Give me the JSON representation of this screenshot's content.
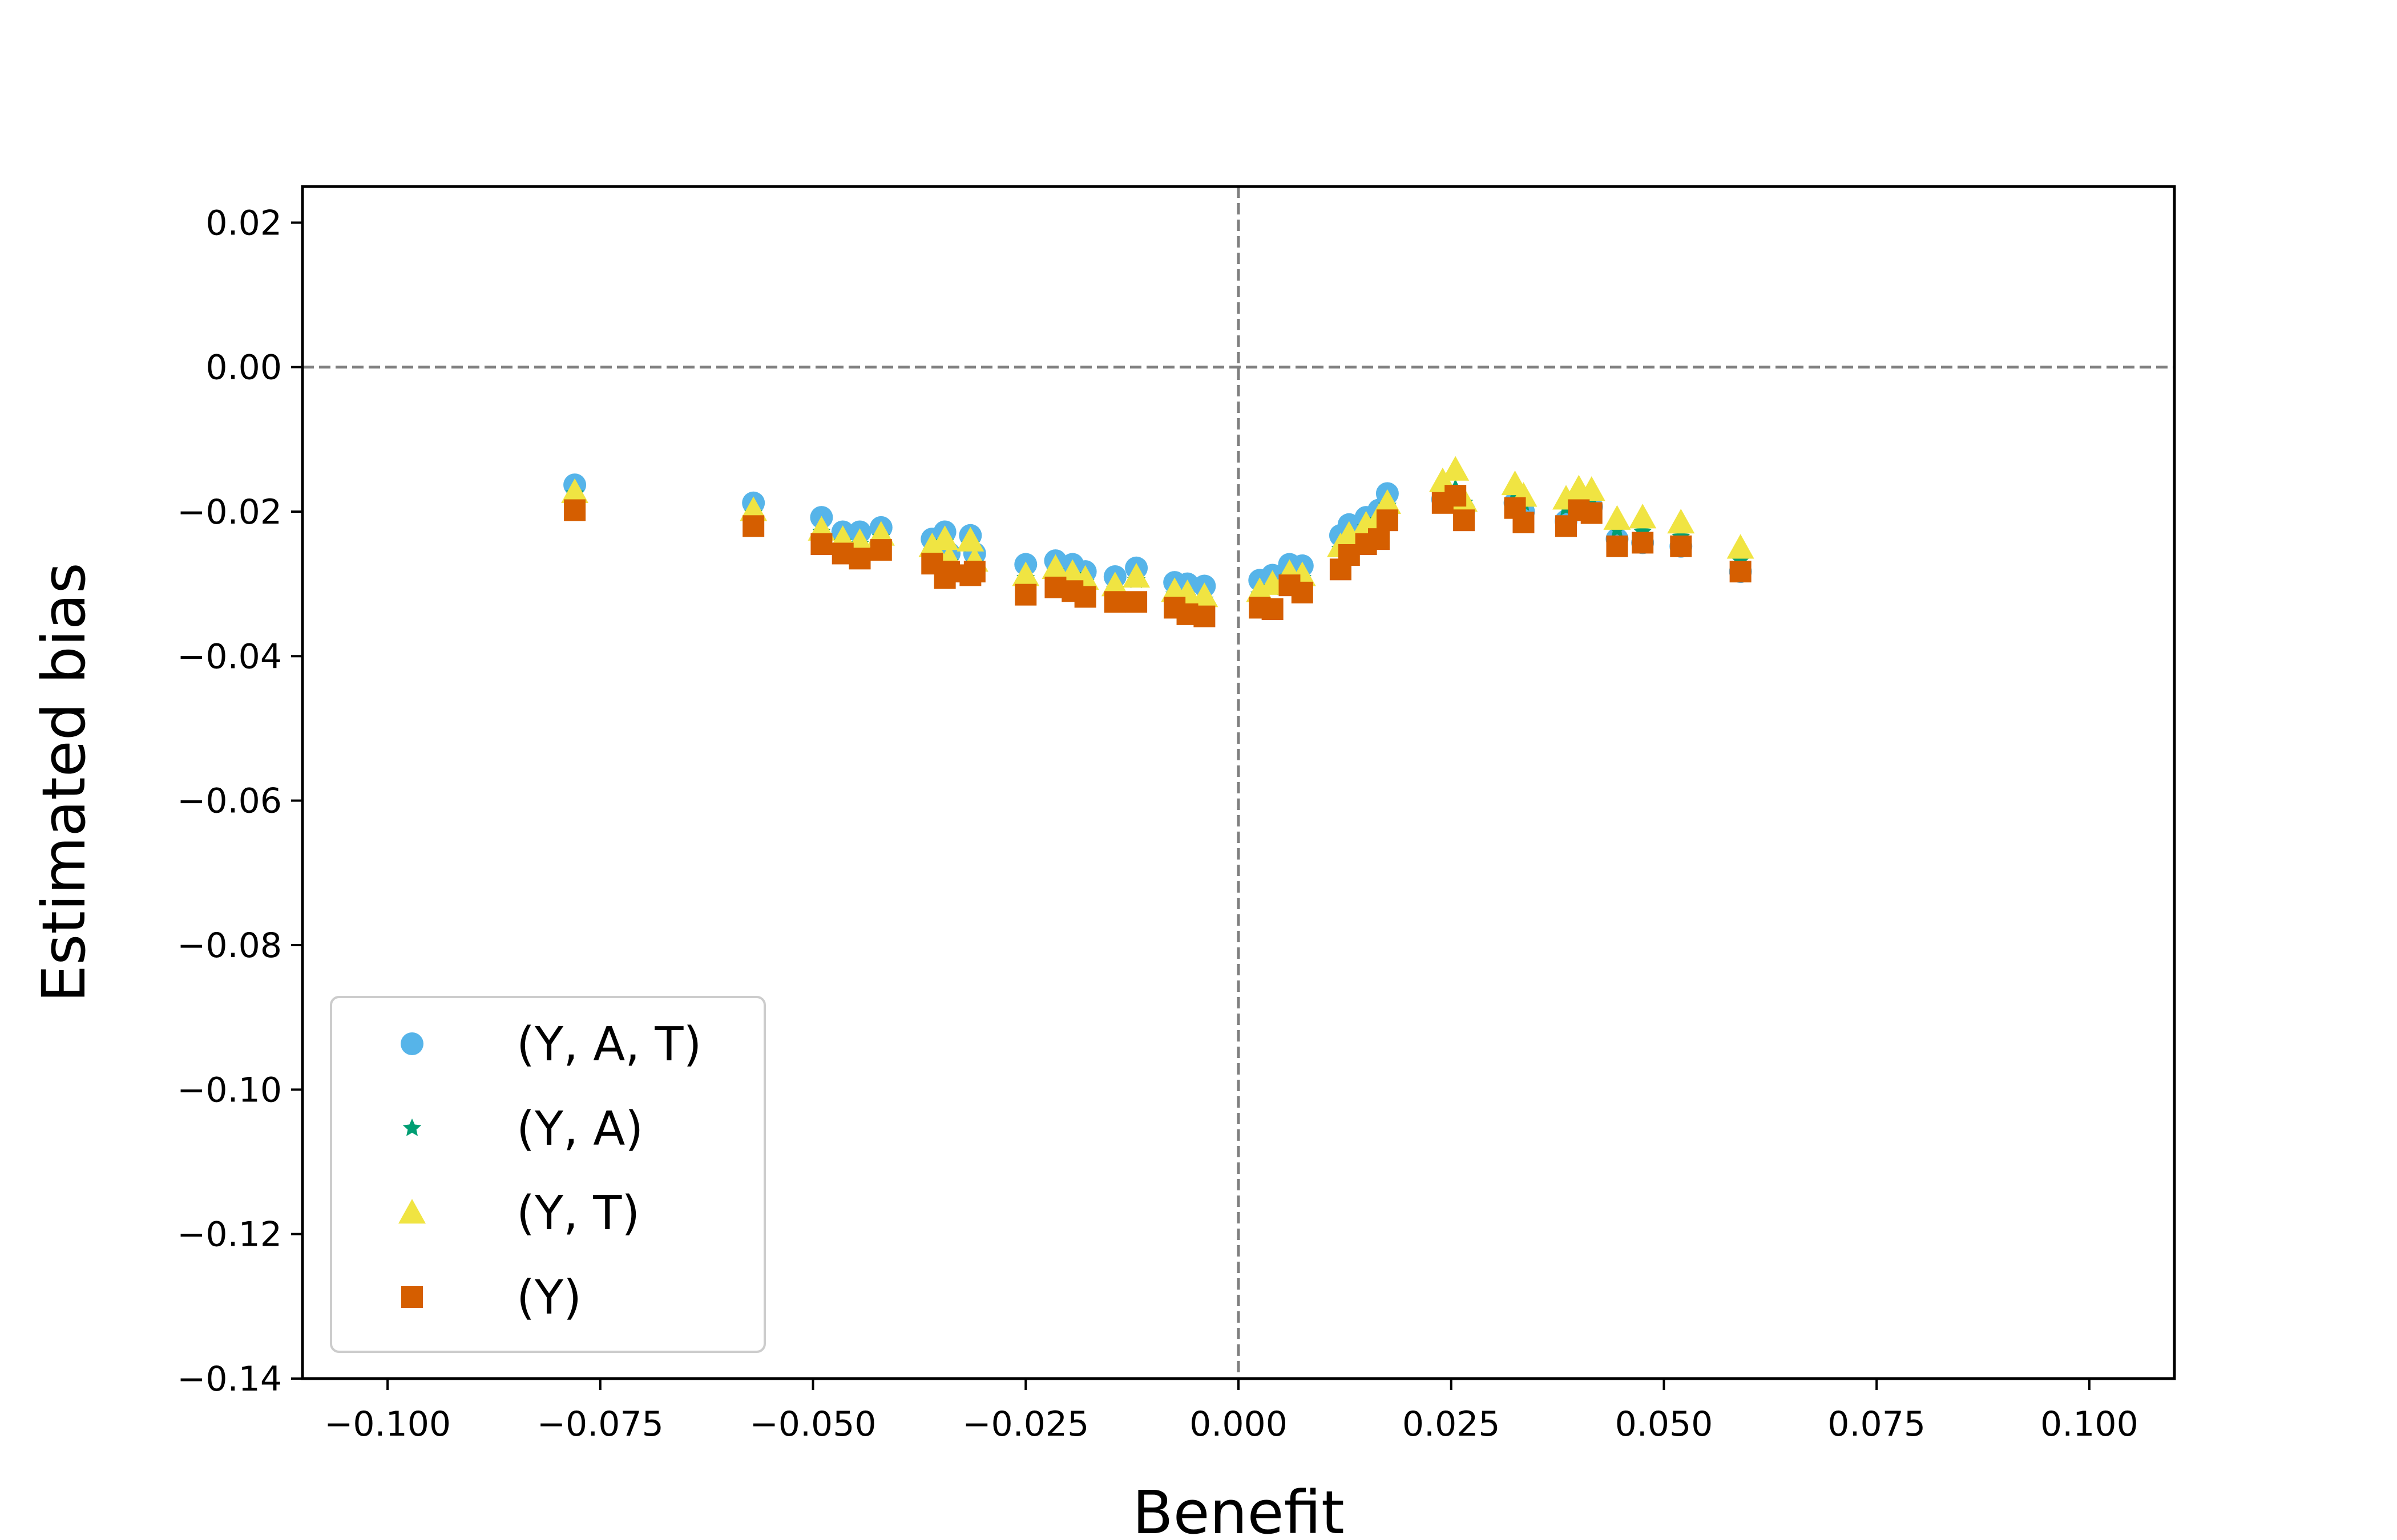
{
  "chart_data": {
    "type": "scatter",
    "title": "",
    "xlabel": "Benefit",
    "ylabel": "Estimated bias",
    "xlim": [
      -0.11,
      0.11
    ],
    "ylim": [
      -0.14,
      0.025
    ],
    "xticks": [
      -0.1,
      -0.075,
      -0.05,
      -0.025,
      0.0,
      0.025,
      0.05,
      0.075,
      0.1
    ],
    "xtick_labels": [
      "−0.100",
      "−0.075",
      "−0.050",
      "−0.025",
      "0.000",
      "0.025",
      "0.050",
      "0.075",
      "0.100"
    ],
    "yticks": [
      0.02,
      0.0,
      -0.02,
      -0.04,
      -0.06,
      -0.08,
      -0.1,
      -0.12,
      -0.14
    ],
    "ytick_labels": [
      "0.02",
      "0.00",
      "−0.02",
      "−0.04",
      "−0.06",
      "−0.08",
      "−0.10",
      "−0.12",
      "−0.14"
    ],
    "reference_lines": {
      "x": 0.0,
      "y": 0.0,
      "style": "dashed",
      "color": "#7f7f7f"
    },
    "grid": false,
    "legend_position": "lower-left",
    "x": [
      -0.078,
      -0.057,
      -0.049,
      -0.0465,
      -0.0445,
      -0.042,
      -0.036,
      -0.0345,
      -0.034,
      -0.0315,
      -0.031,
      -0.025,
      -0.0215,
      -0.0195,
      -0.018,
      -0.0145,
      -0.012,
      -0.0075,
      -0.006,
      -0.004,
      0.0025,
      0.004,
      0.006,
      0.0075,
      0.012,
      0.013,
      0.015,
      0.0165,
      0.0175,
      0.024,
      0.0255,
      0.0265,
      0.0325,
      0.0335,
      0.0385,
      0.04,
      0.0415,
      0.0445,
      0.0475,
      0.052,
      0.059
    ],
    "series": [
      {
        "name": "(Y, A, T)",
        "marker": "circle",
        "color": "#56b4e9",
        "values": [
          -0.0163,
          -0.0188,
          -0.0208,
          -0.0228,
          -0.0228,
          -0.0222,
          -0.0238,
          -0.0228,
          -0.0258,
          -0.0233,
          -0.0258,
          -0.0273,
          -0.0268,
          -0.0273,
          -0.0283,
          -0.029,
          -0.0278,
          -0.0298,
          -0.03,
          -0.0303,
          -0.0295,
          -0.0288,
          -0.0273,
          -0.0275,
          -0.0233,
          -0.0218,
          -0.0208,
          -0.0198,
          -0.0175,
          -0.0183,
          -0.0178,
          -0.0198,
          -0.0188,
          -0.02,
          -0.0213,
          -0.0193,
          -0.0193,
          -0.0238,
          -0.0243,
          -0.0248,
          -0.0283
        ]
      },
      {
        "name": "(Y, A)",
        "marker": "star",
        "color": "#009e73",
        "values": [
          -0.0175,
          -0.0202,
          -0.0228,
          -0.0242,
          -0.0245,
          -0.0235,
          -0.0255,
          -0.0242,
          -0.027,
          -0.0245,
          -0.0272,
          -0.0292,
          -0.0283,
          -0.0288,
          -0.0298,
          -0.0307,
          -0.0295,
          -0.0315,
          -0.0318,
          -0.0322,
          -0.0315,
          -0.0305,
          -0.029,
          -0.0292,
          -0.0252,
          -0.0236,
          -0.0222,
          -0.0212,
          -0.0192,
          -0.0172,
          -0.0168,
          -0.0188,
          -0.0175,
          -0.0188,
          -0.0195,
          -0.0183,
          -0.0183,
          -0.0225,
          -0.0228,
          -0.0235,
          -0.0268
        ]
      },
      {
        "name": "(Y, T)",
        "marker": "triangle",
        "color": "#f0e442",
        "values": [
          -0.0173,
          -0.0198,
          -0.0225,
          -0.0238,
          -0.0242,
          -0.0232,
          -0.0248,
          -0.0238,
          -0.0265,
          -0.024,
          -0.0268,
          -0.0288,
          -0.0278,
          -0.0285,
          -0.0293,
          -0.0302,
          -0.029,
          -0.031,
          -0.0313,
          -0.0317,
          -0.031,
          -0.03,
          -0.0285,
          -0.0288,
          -0.0248,
          -0.0232,
          -0.0218,
          -0.0208,
          -0.0188,
          -0.0158,
          -0.0142,
          -0.0185,
          -0.0162,
          -0.0178,
          -0.0182,
          -0.0168,
          -0.017,
          -0.021,
          -0.0208,
          -0.0215,
          -0.025
        ]
      },
      {
        "name": "(Y)",
        "marker": "square",
        "color": "#d55e00",
        "values": [
          -0.0198,
          -0.022,
          -0.0245,
          -0.0258,
          -0.0265,
          -0.0253,
          -0.0272,
          -0.0292,
          -0.0283,
          -0.0288,
          -0.0283,
          -0.0315,
          -0.0305,
          -0.031,
          -0.0318,
          -0.0325,
          -0.0325,
          -0.0333,
          -0.0342,
          -0.0345,
          -0.0333,
          -0.0335,
          -0.0302,
          -0.0312,
          -0.028,
          -0.026,
          -0.0245,
          -0.0238,
          -0.0212,
          -0.0188,
          -0.0178,
          -0.0212,
          -0.0195,
          -0.0215,
          -0.022,
          -0.0198,
          -0.0202,
          -0.0248,
          -0.0243,
          -0.0248,
          -0.0283
        ]
      }
    ]
  }
}
